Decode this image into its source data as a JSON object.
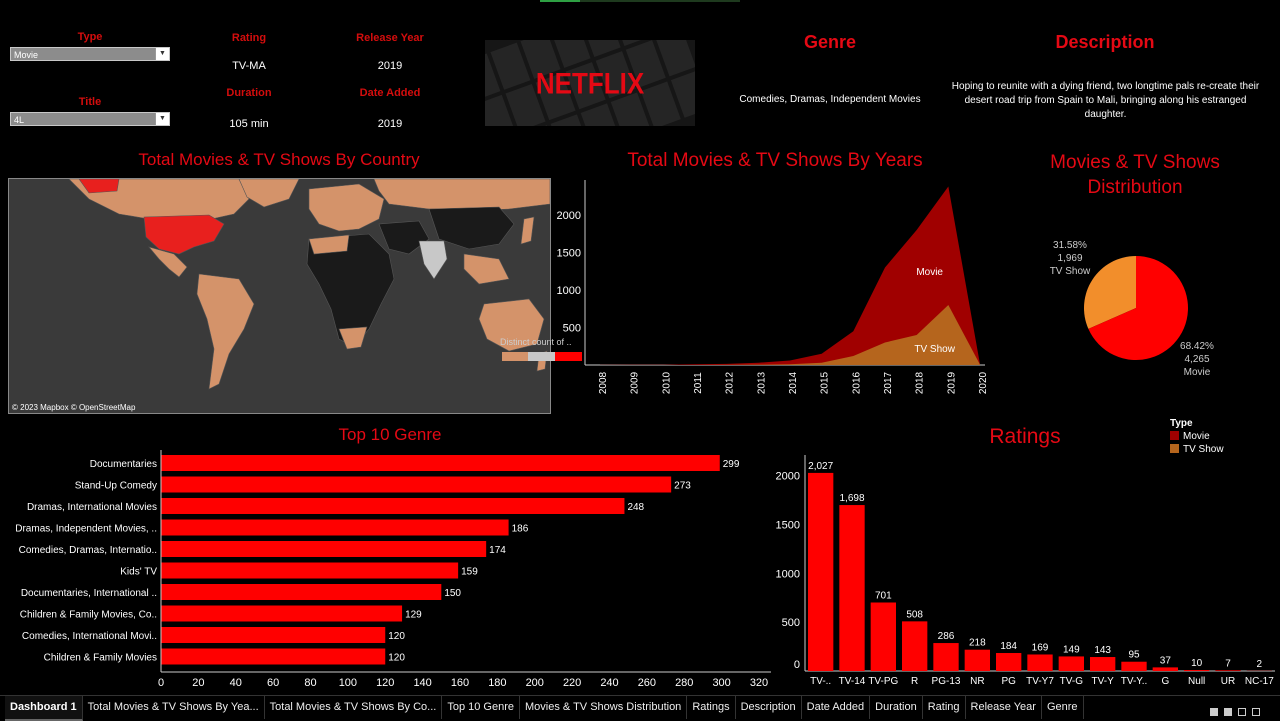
{
  "filters": {
    "type_label": "Type",
    "type_value": "Movie",
    "title_label": "Title",
    "title_value": "4L"
  },
  "details": {
    "rating_label": "Rating",
    "rating_value": "TV-MA",
    "release_label": "Release Year",
    "release_value": "2019",
    "duration_label": "Duration",
    "duration_value": "105 min",
    "added_label": "Date Added",
    "added_value": "2019"
  },
  "logo": {
    "text": "NETFLIX"
  },
  "genre": {
    "title": "Genre",
    "value": "Comedies, Dramas, Independent Movies"
  },
  "description": {
    "title": "Description",
    "value": "Hoping to reunite with a dying friend, two longtime pals re-create their desert road trip from Spain to Mali, bringing along his estranged daughter."
  },
  "map": {
    "title": "Total Movies & TV Shows By Country",
    "attribution": "© 2023 Mapbox © OpenStreetMap",
    "legend_label": "Distinct count of ..",
    "colors": {
      "ocean": "#3a3a3a",
      "land_dark": "#1a1a1a",
      "land_mid": "#d4936a",
      "us": "#e8201e",
      "india": "#c8c8c8",
      "border": "#555555"
    }
  },
  "years_chart": {
    "title": "Total Movies & TV Shows By Years",
    "movie_label": "Movie",
    "tv_label": "TV Show"
  },
  "distribution": {
    "title_line1": "Movies & TV Shows",
    "title_line2": "Distribution",
    "tv_pct": "31.58%",
    "tv_count": "1,969",
    "tv_name": "TV Show",
    "movie_pct": "68.42%",
    "movie_count": "4,265",
    "movie_name": "Movie"
  },
  "top_genre": {
    "title": "Top 10 Genre"
  },
  "ratings": {
    "title": "Ratings"
  },
  "type_legend": {
    "title": "Type",
    "movie": "Movie",
    "tv": "TV Show"
  },
  "tabs": [
    "Dashboard 1",
    "Total Movies & TV Shows By Yea...",
    "Total Movies & TV Shows By Co...",
    "Top 10 Genre",
    "Movies & TV Shows Distribution",
    "Ratings",
    "Description",
    "Date Added",
    "Duration",
    "Rating",
    "Release Year",
    "Genre"
  ],
  "chart_data": [
    {
      "type": "area",
      "title": "Total Movies & TV Shows By Years",
      "x": [
        2008,
        2009,
        2010,
        2011,
        2012,
        2013,
        2014,
        2015,
        2016,
        2017,
        2018,
        2019,
        2020
      ],
      "series": [
        {
          "name": "Movie",
          "color": "#a00000",
          "values": [
            2,
            3,
            3,
            10,
            15,
            30,
            60,
            150,
            450,
            1300,
            1800,
            2380,
            10
          ]
        },
        {
          "name": "TV Show",
          "color": "#b5651d",
          "values": [
            0,
            0,
            0,
            0,
            2,
            5,
            10,
            30,
            120,
            300,
            400,
            800,
            5
          ]
        }
      ],
      "ylim": [
        0,
        2400
      ],
      "yticks": [
        500,
        1000,
        1500,
        2000
      ]
    },
    {
      "type": "pie",
      "title": "Movies & TV Shows Distribution",
      "labels": [
        "Movie",
        "TV Show"
      ],
      "values": [
        4265,
        1969
      ],
      "colors": [
        "#ff0000",
        "#f28e2b"
      ]
    },
    {
      "type": "bar",
      "orientation": "horizontal",
      "title": "Top 10 Genre",
      "categories": [
        "Documentaries",
        "Stand-Up Comedy",
        "Dramas, International Movies",
        "Dramas, Independent Movies, ..",
        "Comedies, Dramas, Internatio..",
        "Kids' TV",
        "Documentaries, International ..",
        "Children & Family Movies, Co..",
        "Comedies, International Movi..",
        "Children & Family Movies"
      ],
      "values": [
        299,
        273,
        248,
        186,
        174,
        159,
        150,
        129,
        120,
        120
      ],
      "xlim": [
        0,
        320
      ],
      "xticks": [
        0,
        20,
        40,
        60,
        80,
        100,
        120,
        140,
        160,
        180,
        200,
        220,
        240,
        260,
        280,
        300,
        320
      ]
    },
    {
      "type": "bar",
      "title": "Ratings",
      "categories": [
        "TV-..",
        "TV-14",
        "TV-PG",
        "R",
        "PG-13",
        "NR",
        "PG",
        "TV-Y7",
        "TV-G",
        "TV-Y",
        "TV-Y..",
        "G",
        "Null",
        "UR",
        "NC-17"
      ],
      "values": [
        2027,
        1698,
        701,
        508,
        286,
        218,
        184,
        169,
        149,
        143,
        95,
        37,
        10,
        7,
        2
      ],
      "labels": [
        "2,027",
        "1,698",
        "701",
        "508",
        "286",
        "218",
        "184",
        "169",
        "149",
        "143",
        "95",
        "37",
        "10",
        "7",
        "2"
      ],
      "ylim": [
        0,
        2200
      ],
      "yticks": [
        0,
        500,
        1000,
        1500,
        2000
      ]
    }
  ]
}
